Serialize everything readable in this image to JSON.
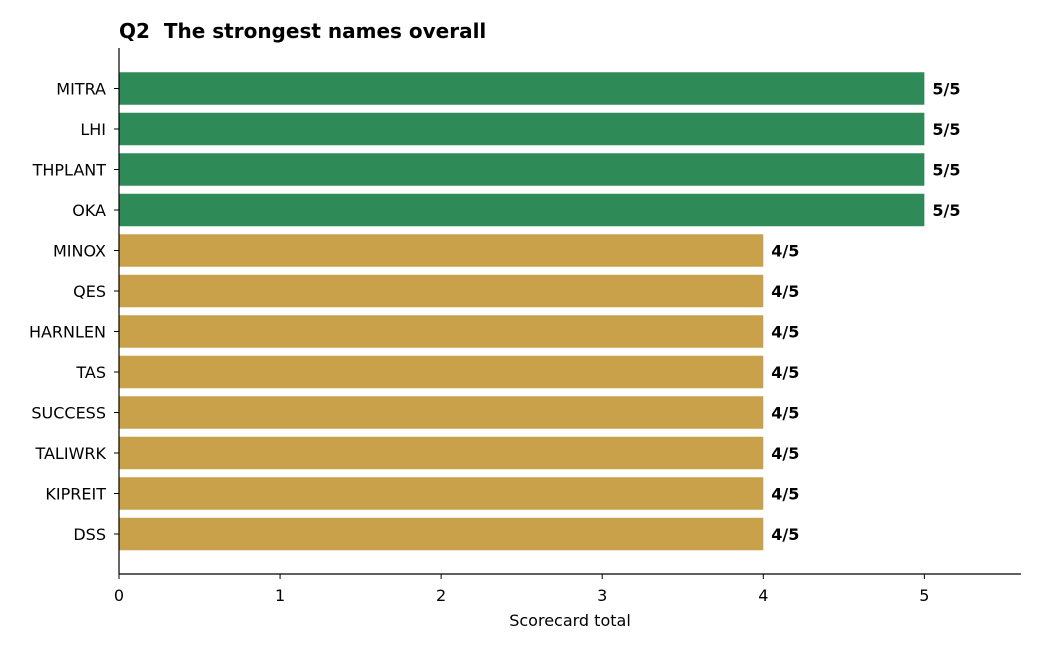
{
  "chart_data": {
    "type": "bar",
    "orientation": "horizontal",
    "title": "Q2  The strongest names overall",
    "xlabel": "Scorecard total",
    "ylabel": "",
    "xlim": [
      0,
      5.6
    ],
    "xticks": [
      0,
      1,
      2,
      3,
      4,
      5
    ],
    "grid": false,
    "categories": [
      "MITRA",
      "LHI",
      "THPLANT",
      "OKA",
      "MINOX",
      "QES",
      "HARNLEN",
      "TAS",
      "SUCCESS",
      "TALIWRK",
      "KIPREIT",
      "DSS"
    ],
    "values": [
      5,
      5,
      5,
      5,
      4,
      4,
      4,
      4,
      4,
      4,
      4,
      4
    ],
    "data_labels": [
      "5/5",
      "5/5",
      "5/5",
      "5/5",
      "4/5",
      "4/5",
      "4/5",
      "4/5",
      "4/5",
      "4/5",
      "4/5",
      "4/5"
    ],
    "colors": {
      "score_5": "#2e8b57",
      "score_4": "#c8a14a"
    }
  }
}
